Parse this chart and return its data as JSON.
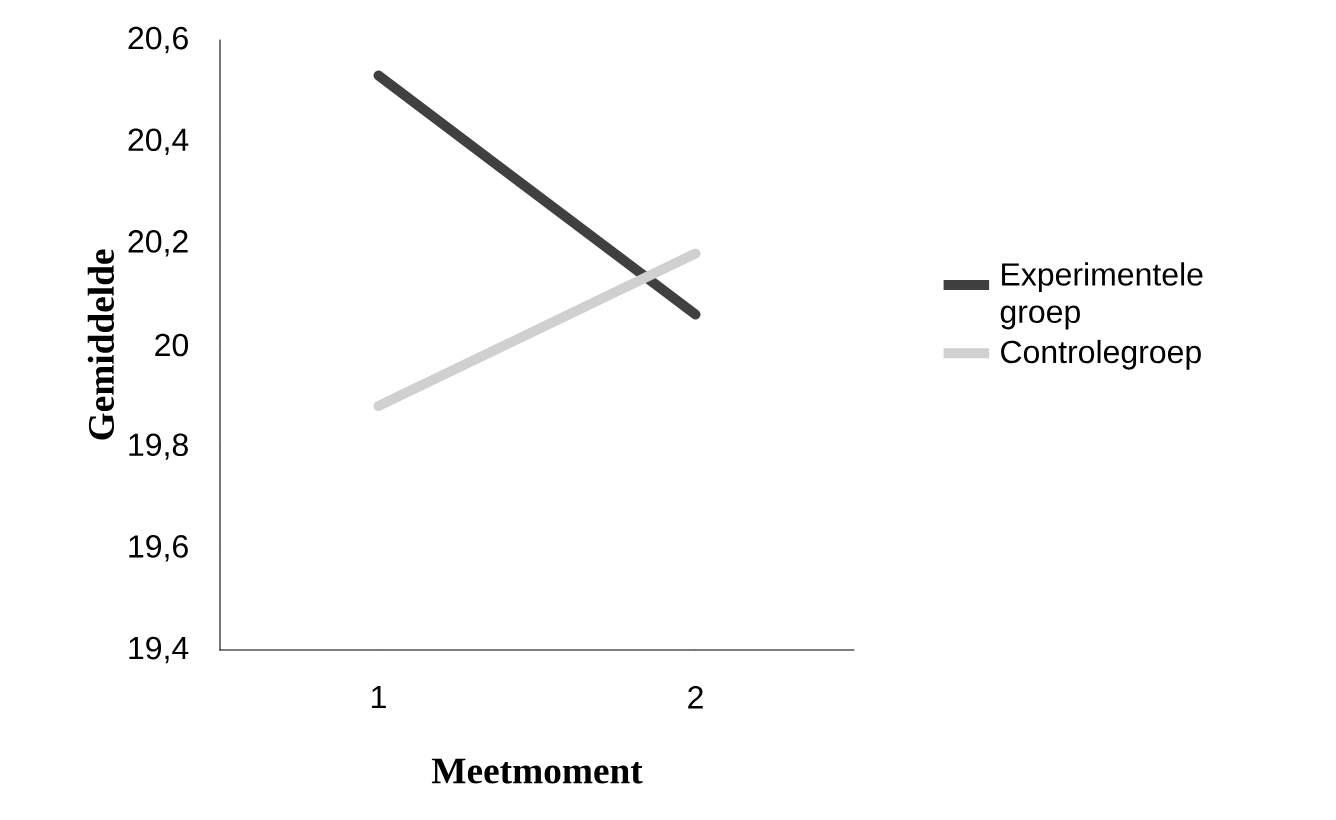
{
  "chart_data": {
    "type": "line",
    "xlabel": "Meetmoment",
    "ylabel": "Gemiddelde",
    "categories": [
      "1",
      "2"
    ],
    "series": [
      {
        "name": "Experimentele groep",
        "color": "#404040",
        "values": [
          20.53,
          20.06
        ]
      },
      {
        "name": "Controlegroep",
        "color": "#d0d0d0",
        "values": [
          19.88,
          20.18
        ]
      }
    ],
    "ylim": [
      19.4,
      20.6
    ],
    "yticks": [
      {
        "value": 19.4,
        "label": "19,4"
      },
      {
        "value": 19.6,
        "label": "19,6"
      },
      {
        "value": 19.8,
        "label": "19,8"
      },
      20,
      {
        "value": 20.2,
        "label": "20,2"
      },
      {
        "value": 20.4,
        "label": "20,4"
      },
      {
        "value": 20.6,
        "label": "20,6"
      }
    ],
    "legend": "right",
    "grid": false,
    "marker": "none",
    "line_style": "solid"
  }
}
